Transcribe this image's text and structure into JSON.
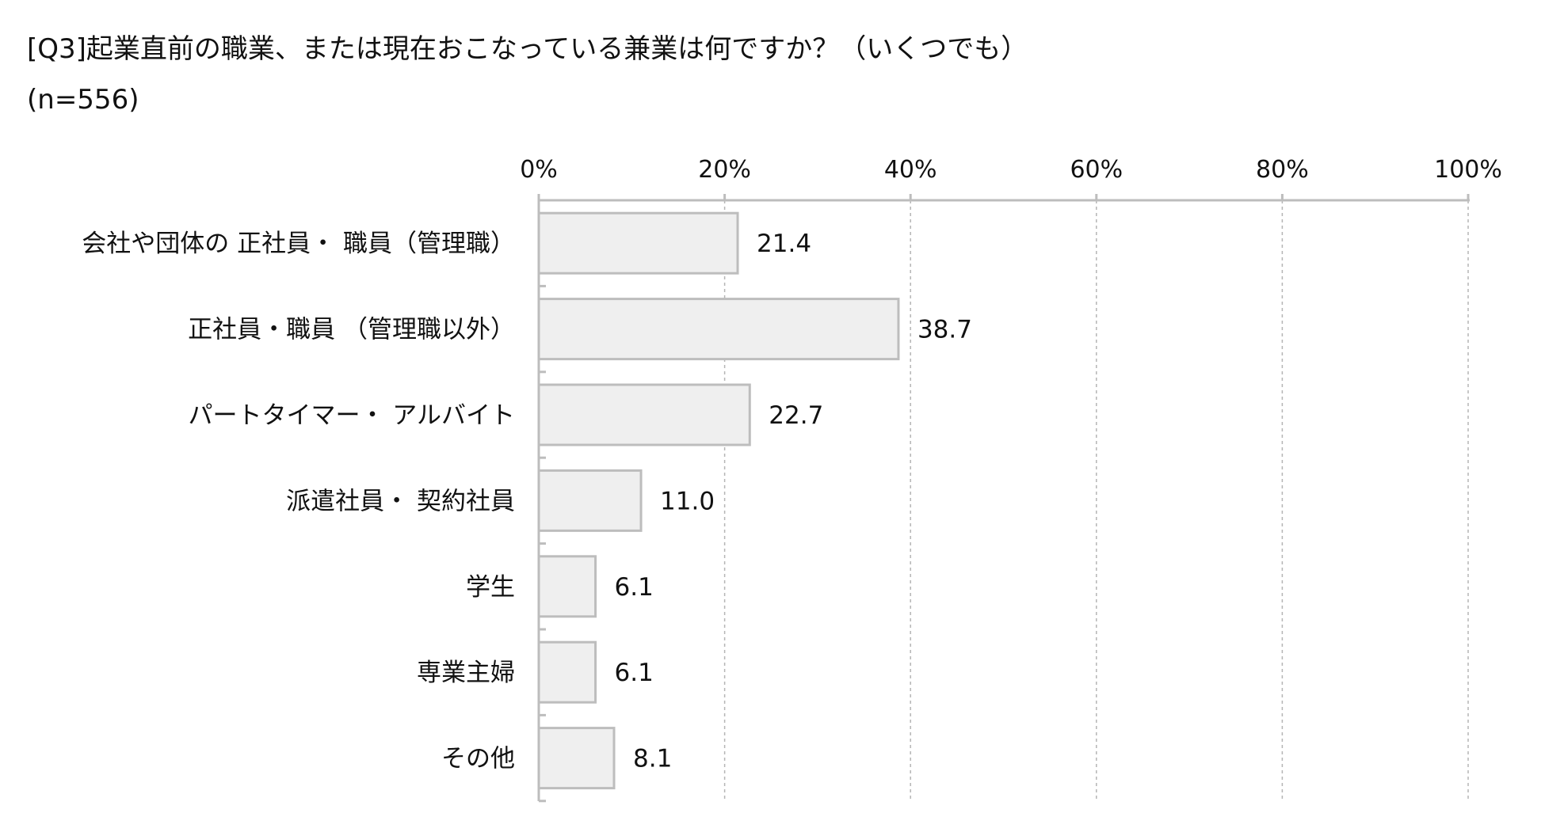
{
  "header": {
    "title": "[Q3]起業直前の職業、または現在おこなっている兼業は何ですか？（いくつでも）",
    "sample_size": "(n=556)"
  },
  "chart_data": {
    "type": "bar",
    "orientation": "horizontal",
    "title": "[Q3]起業直前の職業、または現在おこなっている兼業は何ですか？（いくつでも）",
    "subtitle": "(n=556)",
    "xlabel": "",
    "ylabel": "",
    "xlim": [
      0,
      100
    ],
    "x_ticks": [
      0,
      20,
      40,
      60,
      80,
      100
    ],
    "x_tick_labels": [
      "0%",
      "20%",
      "40%",
      "60%",
      "80%",
      "100%"
    ],
    "x_axis_position": "top",
    "grid": "vertical dashed",
    "categories": [
      "会社や団体の 正社員・ 職員（管理職）",
      "正社員・職員 （管理職以外）",
      "パートタイマー・ アルバイト",
      "派遣社員・ 契約社員",
      "学生",
      "専業主婦",
      "その他"
    ],
    "values": [
      21.4,
      38.7,
      22.7,
      11.0,
      6.1,
      6.1,
      8.1
    ],
    "value_labels": [
      "21.4",
      "38.7",
      "22.7",
      "11.0",
      "6.1",
      "6.1",
      "8.1"
    ],
    "colors": {
      "bar_fill": "#efefef",
      "bar_stroke": "#bdbdbd",
      "axis": "#bdbdbd",
      "grid": "#b5b5b5"
    }
  }
}
